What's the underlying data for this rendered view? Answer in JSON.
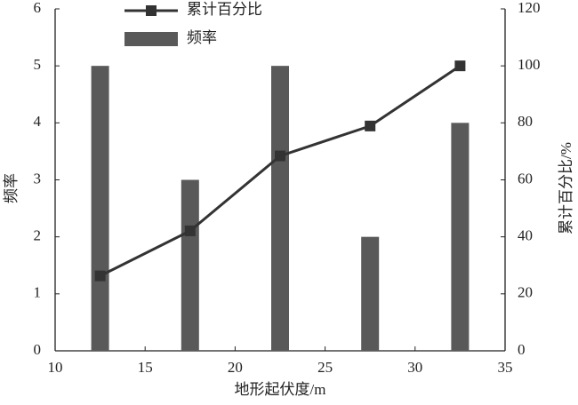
{
  "chart_data": {
    "type": "bar",
    "x_label": "地形起伏度/m",
    "y_label": "频率",
    "y2_label": "累计百分比/%",
    "x": [
      12.5,
      17.5,
      22.5,
      27.5,
      32.5
    ],
    "series": [
      {
        "name": "累计百分比",
        "type": "line",
        "axis": "y2",
        "color": "#333333",
        "values": [
          26.3,
          42.1,
          68.4,
          78.9,
          100
        ]
      },
      {
        "name": "频率",
        "type": "bar",
        "color": "#595959",
        "values": [
          5,
          3,
          5,
          2,
          4
        ]
      }
    ],
    "xlim": [
      10,
      35
    ],
    "xticks": [
      10,
      15,
      20,
      25,
      30,
      35
    ],
    "ylim": [
      0,
      6
    ],
    "yticks": [
      0,
      1,
      2,
      3,
      4,
      5,
      6
    ],
    "y2lim": [
      0,
      120
    ],
    "y2ticks": [
      0,
      20,
      40,
      60,
      80,
      100,
      120
    ],
    "grid": false
  }
}
